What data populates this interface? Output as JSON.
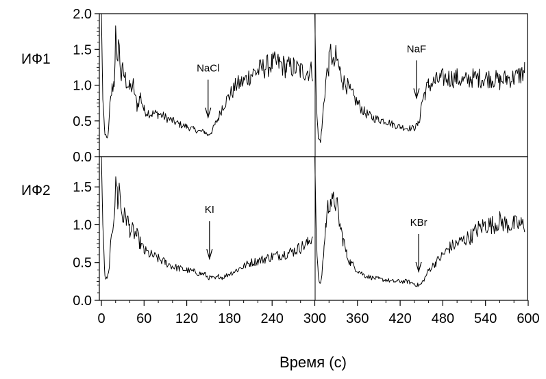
{
  "chart_data": {
    "type": "line",
    "xlabel": "Время (с)",
    "xlim": [
      -5,
      600
    ],
    "x_ticks": [
      0,
      60,
      120,
      180,
      240,
      300,
      360,
      420,
      480,
      540,
      600
    ],
    "segment_break_x": 300,
    "grid": false,
    "panels": [
      {
        "label": "ИФ1",
        "ylim": [
          0,
          2.0
        ],
        "y_ticks": [
          "0.0",
          "0.5",
          "1.0",
          "1.5",
          "2.0"
        ],
        "series": [
          {
            "x": [
              0,
              2,
              5,
              8,
              10,
              12,
              15,
              18,
              20,
              22,
              24,
              26,
              28,
              30,
              35,
              40,
              45,
              50,
              55,
              60,
              70,
              80,
              90,
              100,
              110,
              120,
              130,
              140,
              145,
              150,
              155,
              160,
              165,
              170,
              180,
              190,
              200,
              210,
              220,
              230,
              240,
              250,
              260,
              270,
              280,
              290,
              297
            ],
            "y": [
              2.0,
              0.8,
              0.3,
              0.25,
              0.35,
              0.7,
              0.95,
              1.05,
              1.7,
              1.25,
              1.65,
              1.35,
              1.1,
              1.2,
              1.05,
              0.95,
              1.0,
              0.7,
              0.85,
              0.65,
              0.6,
              0.6,
              0.55,
              0.5,
              0.45,
              0.42,
              0.38,
              0.35,
              0.35,
              0.3,
              0.35,
              0.45,
              0.55,
              0.7,
              0.85,
              1.0,
              1.05,
              1.15,
              1.2,
              1.25,
              1.3,
              1.3,
              1.25,
              1.25,
              1.2,
              1.2,
              1.2
            ]
          },
          {
            "x": [
              300,
              302,
              305,
              308,
              310,
              313,
              316,
              320,
              323,
              326,
              330,
              335,
              340,
              345,
              350,
              360,
              370,
              380,
              390,
              400,
              410,
              420,
              430,
              440,
              445,
              448,
              450,
              455,
              460,
              470,
              480,
              490,
              500,
              510,
              520,
              530,
              540,
              550,
              560,
              570,
              580,
              590,
              595
            ],
            "y": [
              2.0,
              0.8,
              0.25,
              0.22,
              0.4,
              0.8,
              1.1,
              1.3,
              1.5,
              1.25,
              1.4,
              1.2,
              1.05,
              1.0,
              0.9,
              0.75,
              0.62,
              0.55,
              0.52,
              0.5,
              0.45,
              0.42,
              0.4,
              0.4,
              0.45,
              0.55,
              0.75,
              0.9,
              1.0,
              1.05,
              1.1,
              1.1,
              1.1,
              1.05,
              1.1,
              1.1,
              1.1,
              1.1,
              1.05,
              1.1,
              1.1,
              1.15,
              1.2
            ]
          }
        ],
        "annotations": [
          {
            "text": "NaCl",
            "x": 150,
            "arrow_tip_y": 0.55
          },
          {
            "text": "NaF",
            "x": 443,
            "arrow_tip_y": 0.82
          }
        ]
      },
      {
        "label": "ИФ2",
        "ylim": [
          0,
          1.9
        ],
        "y_ticks": [
          "0.0",
          "0.5",
          "1.0",
          "1.5"
        ],
        "series": [
          {
            "x": [
              0,
              2,
              5,
              8,
              10,
              13,
              16,
              19,
              21,
              23,
              25,
              28,
              30,
              35,
              40,
              45,
              50,
              55,
              60,
              70,
              80,
              90,
              100,
              110,
              120,
              130,
              140,
              145,
              150,
              155,
              160,
              165,
              170,
              180,
              190,
              200,
              210,
              220,
              230,
              240,
              250,
              260,
              270,
              280,
              290,
              297
            ],
            "y": [
              1.9,
              1.0,
              0.3,
              0.28,
              0.35,
              0.7,
              1.0,
              1.3,
              1.6,
              1.3,
              1.5,
              1.2,
              1.1,
              1.1,
              0.95,
              0.9,
              0.85,
              0.75,
              0.65,
              0.6,
              0.55,
              0.5,
              0.45,
              0.42,
              0.4,
              0.38,
              0.35,
              0.35,
              0.3,
              0.3,
              0.28,
              0.32,
              0.3,
              0.35,
              0.4,
              0.45,
              0.5,
              0.52,
              0.55,
              0.58,
              0.6,
              0.62,
              0.65,
              0.7,
              0.75,
              0.85
            ]
          },
          {
            "x": [
              300,
              302,
              305,
              308,
              310,
              313,
              316,
              319,
              322,
              325,
              328,
              332,
              336,
              340,
              345,
              350,
              360,
              370,
              380,
              390,
              400,
              410,
              420,
              430,
              440,
              445,
              448,
              450,
              455,
              460,
              470,
              480,
              490,
              500,
              510,
              520,
              530,
              540,
              550,
              560,
              570,
              580,
              590,
              595
            ],
            "y": [
              1.9,
              0.9,
              0.3,
              0.2,
              0.35,
              0.7,
              1.05,
              1.25,
              1.35,
              1.25,
              1.35,
              1.2,
              0.95,
              0.8,
              0.6,
              0.5,
              0.4,
              0.33,
              0.3,
              0.28,
              0.27,
              0.25,
              0.25,
              0.25,
              0.22,
              0.2,
              0.2,
              0.22,
              0.3,
              0.4,
              0.5,
              0.6,
              0.7,
              0.75,
              0.8,
              0.85,
              0.95,
              1.0,
              1.0,
              1.05,
              1.0,
              1.0,
              1.0,
              1.0
            ]
          }
        ],
        "annotations": [
          {
            "text": "KI",
            "x": 152,
            "arrow_tip_y": 0.55
          },
          {
            "text": "KBr",
            "x": 446,
            "arrow_tip_y": 0.38
          }
        ]
      }
    ]
  }
}
